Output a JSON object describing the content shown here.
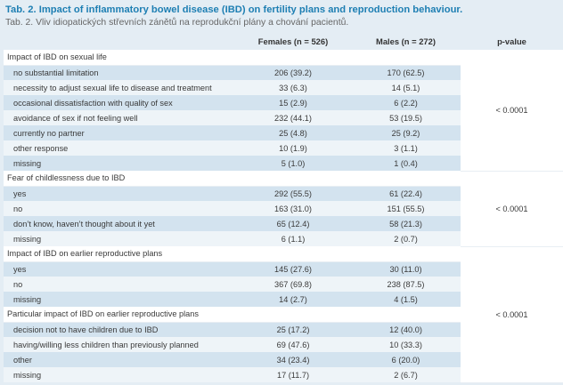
{
  "title": "Tab. 2. Impact of inflammatory bowel disease (IBD) on fertility plans and reproduction behaviour.",
  "subtitle": "Tab. 2. Vliv idiopatických střevních zánětů na reprodukční plány a chování pacientů.",
  "headers": {
    "category": "",
    "females": "Females (n = 526)",
    "males": "Males (n = 272)",
    "pvalue": "p-value"
  },
  "sections": [
    {
      "title": "Impact of IBD on sexual life",
      "pvalue": "< 0.0001",
      "rows": [
        {
          "label": "no substantial limitation",
          "females": "206 (39.2)",
          "males": "170 (62.5)"
        },
        {
          "label": "necessity to adjust sexual life to disease and treatment",
          "females": "33 (6.3)",
          "males": "14 (5.1)"
        },
        {
          "label": "occasional dissatisfaction with quality of sex",
          "females": "15 (2.9)",
          "males": "6 (2.2)"
        },
        {
          "label": "avoidance of sex if not feeling well",
          "females": "232 (44.1)",
          "males": "53 (19.5)"
        },
        {
          "label": "currently no partner",
          "females": "25 (4.8)",
          "males": "25 (9.2)"
        },
        {
          "label": "other response",
          "females": "10 (1.9)",
          "males": "3 (1.1)"
        },
        {
          "label": "missing",
          "females": "5 (1.0)",
          "males": "1 (0.4)"
        }
      ]
    },
    {
      "title": "Fear of childlessness due to IBD",
      "pvalue": "< 0.0001",
      "rows": [
        {
          "label": "yes",
          "females": "292 (55.5)",
          "males": "61 (22.4)"
        },
        {
          "label": "no",
          "females": "163 (31.0)",
          "males": "151 (55.5)"
        },
        {
          "label": "don’t know, haven’t thought about it yet",
          "females": "65 (12.4)",
          "males": "58 (21.3)"
        },
        {
          "label": "missing",
          "females": "6 (1.1)",
          "males": "2 (0.7)"
        }
      ]
    },
    {
      "title": "Impact of IBD on earlier reproductive plans",
      "pvalue": "< 0.0001",
      "rows": [
        {
          "label": "yes",
          "females": "145 (27.6)",
          "males": "30 (11.0)"
        },
        {
          "label": "no",
          "females": "367 (69.8)",
          "males": "238 (87.5)"
        },
        {
          "label": "missing",
          "females": "14 (2.7)",
          "males": "4 (1.5)"
        }
      ]
    },
    {
      "title": "Particular impact of IBD on earlier reproductive plans",
      "pvalue": "",
      "rows": [
        {
          "label": "decision not to have children due to IBD",
          "females": "25 (17.2)",
          "males": "12 (40.0)"
        },
        {
          "label": "having/willing less children than previously planned",
          "females": "69 (47.6)",
          "males": "10 (33.3)"
        },
        {
          "label": "other",
          "females": "34 (23.4)",
          "males": "6 (20.0)"
        },
        {
          "label": "missing",
          "females": "17 (11.7)",
          "males": "2 (6.7)"
        }
      ]
    }
  ]
}
